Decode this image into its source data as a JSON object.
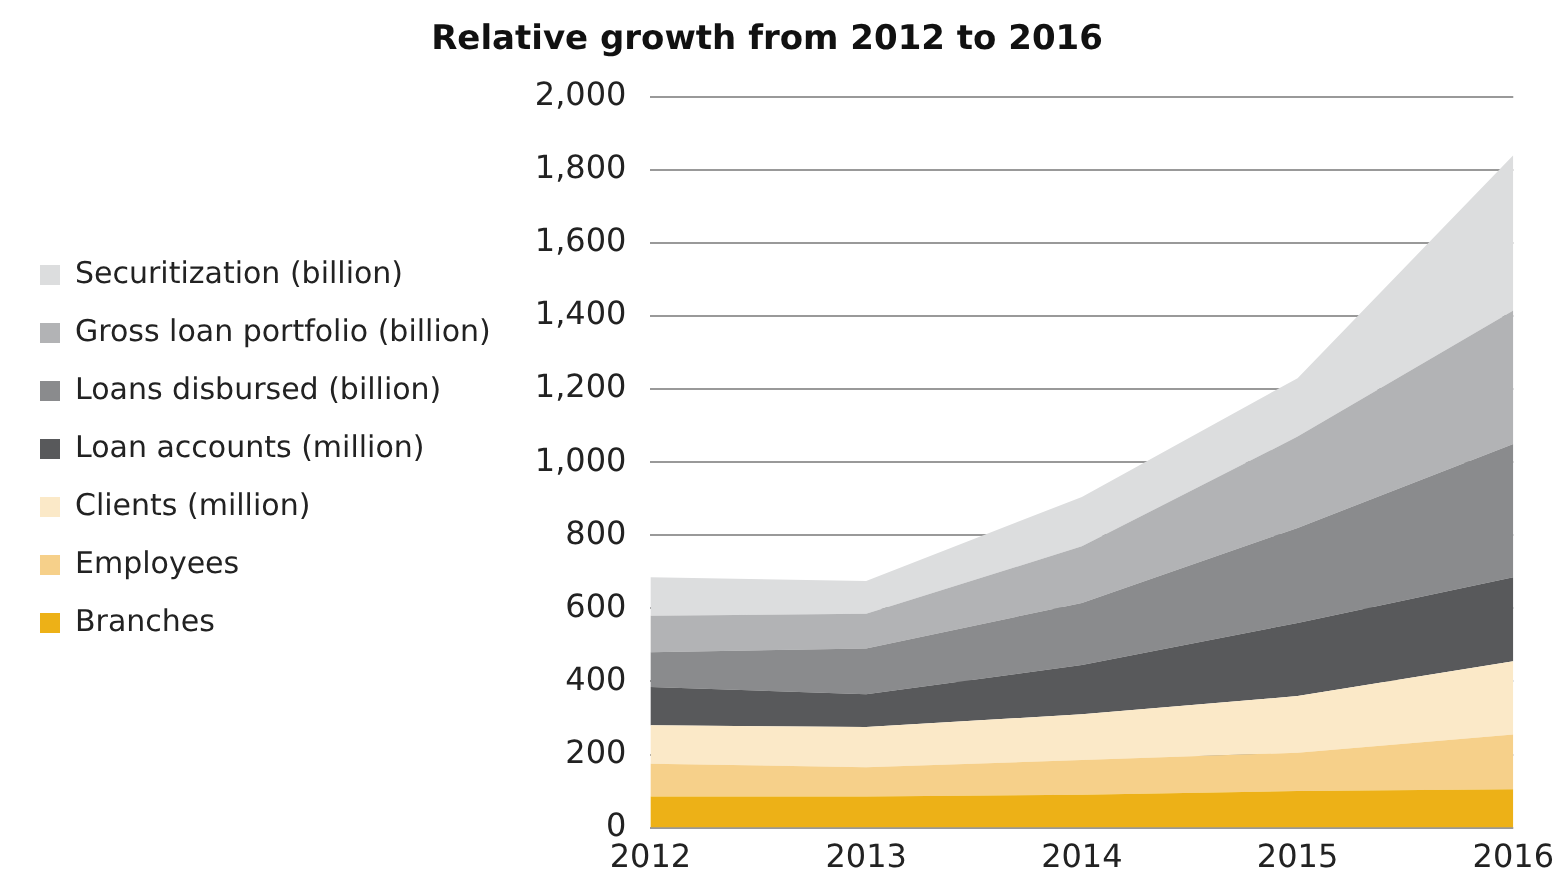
{
  "chart_data": {
    "type": "area",
    "title": "Relative growth from 2012 to 2016",
    "categories": [
      "2012",
      "2013",
      "2014",
      "2015",
      "2016"
    ],
    "stacked": true,
    "ylim": [
      0,
      2000
    ],
    "yticks": [
      0,
      {
        "value": 200,
        "label": "200"
      },
      {
        "value": 400,
        "label": "400"
      },
      {
        "value": 600,
        "label": "600"
      },
      {
        "value": 800,
        "label": "800"
      },
      {
        "value": 1000,
        "label": "1,000"
      },
      {
        "value": 1200,
        "label": "1,200"
      },
      {
        "value": 1400,
        "label": "1,400"
      },
      {
        "value": 1600,
        "label": "1,600"
      },
      {
        "value": 1800,
        "label": "1,800"
      },
      {
        "value": 2000,
        "label": "2,000"
      }
    ],
    "grid": "y",
    "legend": "left",
    "series": [
      {
        "name": "Branches",
        "color": "#edb117",
        "values": [
          85,
          85,
          90,
          100,
          105
        ]
      },
      {
        "name": "Employees",
        "color": "#f6d08a",
        "values": [
          90,
          80,
          95,
          105,
          150
        ]
      },
      {
        "name": "Clients (million)",
        "color": "#fbe9c8",
        "values": [
          105,
          110,
          125,
          155,
          200
        ]
      },
      {
        "name": "Loan accounts (million)",
        "color": "#58595b",
        "values": [
          105,
          90,
          135,
          200,
          230
        ]
      },
      {
        "name": "Loans disbursed (billion)",
        "color": "#8a8b8d",
        "values": [
          95,
          125,
          170,
          260,
          365
        ]
      },
      {
        "name": "Gross loan portfolio (billion)",
        "color": "#b2b3b5",
        "values": [
          100,
          95,
          155,
          250,
          365
        ]
      },
      {
        "name": "Securitization (billion)",
        "color": "#dcddde",
        "values": [
          105,
          90,
          135,
          160,
          425
        ]
      }
    ]
  }
}
